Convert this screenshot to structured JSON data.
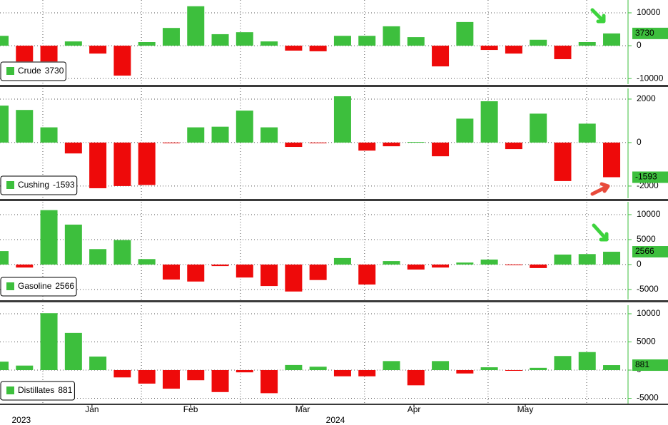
{
  "chart_data": [
    {
      "type": "bar",
      "name": "Crude",
      "up_color": "#3dbf3d",
      "down_color": "#ee0a0a",
      "values": [
        3000,
        -4800,
        -4800,
        1300,
        -2400,
        -9100,
        1100,
        5400,
        12000,
        3500,
        4100,
        1300,
        -1500,
        -1700,
        3000,
        3000,
        5900,
        2600,
        -6300,
        7200,
        -1300,
        -2400,
        1800,
        -4100,
        1100,
        3730
      ],
      "ylim": [
        -11700,
        13900
      ],
      "yticks": [
        -10000,
        0,
        10000
      ],
      "grid": true
    },
    {
      "type": "bar",
      "name": "Cushing",
      "up_color": "#3dbf3d",
      "down_color": "#ee0a0a",
      "values": [
        1700,
        1500,
        700,
        -500,
        -2100,
        -2000,
        -1950,
        -30,
        700,
        730,
        1470,
        700,
        -200,
        -30,
        2130,
        -370,
        -170,
        30,
        -630,
        1100,
        1900,
        -300,
        1330,
        -1770,
        870,
        -1593
      ],
      "ylim": [
        -2560,
        2490
      ],
      "yticks": [
        -2000,
        0,
        2000
      ],
      "grid": true
    },
    {
      "type": "bar",
      "name": "Gasoline",
      "up_color": "#3dbf3d",
      "down_color": "#ee0a0a",
      "values": [
        2700,
        -600,
        10900,
        8000,
        3100,
        4900,
        1100,
        -3000,
        -3400,
        -300,
        -2600,
        -4300,
        -5400,
        -3100,
        1300,
        -4000,
        700,
        -1000,
        -600,
        400,
        1000,
        -100,
        -700,
        2000,
        2100,
        2566
      ],
      "ylim": [
        -7000,
        12570
      ],
      "yticks": [
        -5000,
        0,
        5000,
        10000
      ],
      "grid": true
    },
    {
      "type": "bar",
      "name": "Distillates",
      "up_color": "#3dbf3d",
      "down_color": "#ee0a0a",
      "values": [
        1500,
        800,
        10100,
        6600,
        2400,
        -1300,
        -2400,
        -3300,
        -1800,
        -3900,
        -400,
        -4100,
        900,
        600,
        -1100,
        -1100,
        1600,
        -2700,
        1600,
        -600,
        500,
        -100,
        400,
        2500,
        3200,
        881
      ],
      "ylim": [
        -5950,
        11520
      ],
      "yticks": [
        -5000,
        0,
        5000,
        10000
      ],
      "grid": true
    }
  ],
  "x_axis": {
    "xlim": [
      0,
      25.67
    ],
    "xticks": [
      {
        "value": 3.76,
        "label": "Jan"
      },
      {
        "value": 7.79,
        "label": "Feb"
      },
      {
        "value": 12.37,
        "label": "Mar"
      },
      {
        "value": 16.92,
        "label": "Apr"
      },
      {
        "value": 21.47,
        "label": "May"
      }
    ],
    "year_ticks": [
      {
        "value": 0.87,
        "label": "2023"
      },
      {
        "value": 13.71,
        "label": "2024"
      }
    ],
    "grid": [
      1.75,
      5.78,
      9.83,
      14.9,
      19.95,
      23.98
    ]
  }
}
